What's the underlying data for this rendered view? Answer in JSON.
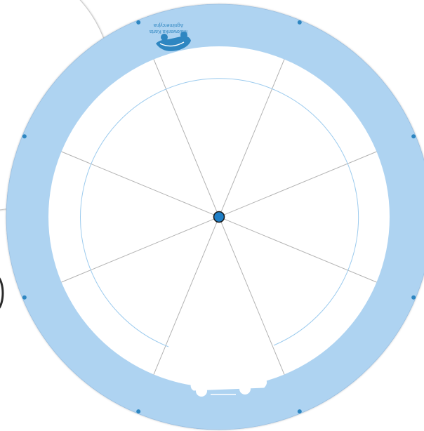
{
  "brand": {
    "line1": "Malowanka Karta",
    "line2": "Agnimercyjna"
  },
  "colors": {
    "ring": "#aed3f1",
    "accent": "#2e86c1",
    "guide": "#9ccbee",
    "spoke": "#b3b3b3",
    "pin": "#1f7fc7"
  },
  "wheel": {
    "segments": 8
  },
  "icons": [
    "hands-logo-icon",
    "car-icon",
    "pin-icon"
  ]
}
